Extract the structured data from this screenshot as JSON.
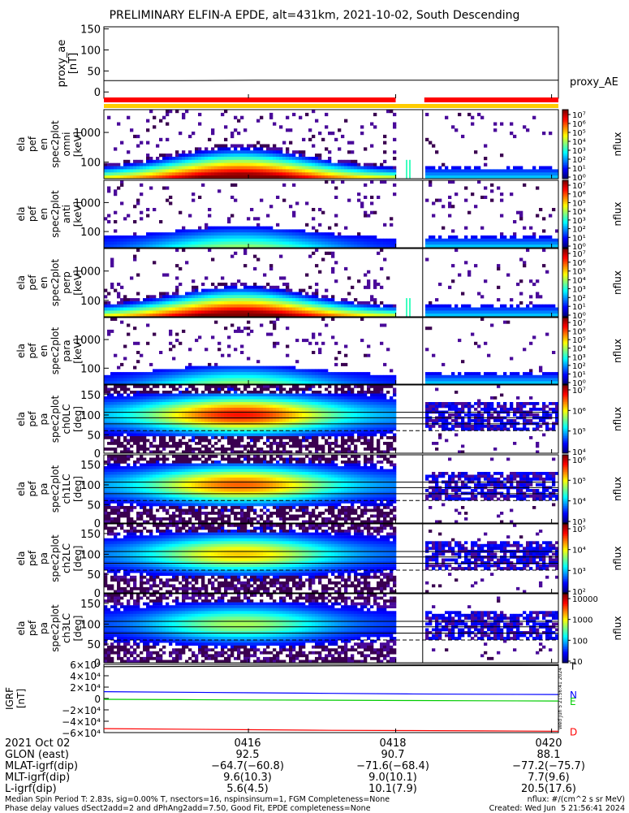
{
  "title": "PRELIMINARY ELFIN-A EPDE, alt=431km, 2021-10-02, South Descending",
  "colors": {
    "red": "#ff0000",
    "yellow": "#ffcc00",
    "blue": "#0000ff",
    "green": "#00cc00",
    "black": "#000000"
  },
  "chart_data": [
    {
      "id": "proxy_ae",
      "type": "line",
      "ylabel": [
        "proxy_ae",
        "[nT]"
      ],
      "yticks": [
        "150",
        "100",
        "50",
        "0"
      ],
      "ylim": [
        -15,
        155
      ],
      "series": [
        {
          "name": "proxy_AE",
          "values": [
            27,
            27,
            28,
            28,
            28,
            28,
            28
          ]
        }
      ],
      "flag_bar": [
        "red",
        "red",
        "yellow",
        "red",
        "red"
      ]
    },
    {
      "id": "spec1",
      "type": "heatmap",
      "ylabel": [
        "ela",
        "pef",
        "en",
        "spec2plot",
        "omni",
        "[keV]"
      ],
      "yticks": [
        "1000",
        "100"
      ],
      "ytick_pos": [
        0.67,
        0.24
      ],
      "kind": "energy",
      "intensity": 1.0,
      "cbar_label": "nflux",
      "cbar_ticks": [
        "10⁷",
        "10⁶",
        "10⁵",
        "10⁴",
        "10³",
        "10²",
        "10¹",
        "10⁰"
      ]
    },
    {
      "id": "spec2",
      "type": "heatmap",
      "ylabel": [
        "ela",
        "pef",
        "en",
        "spec2plot",
        "anti",
        "[keV]"
      ],
      "yticks": [
        "1000",
        "100"
      ],
      "ytick_pos": [
        0.67,
        0.24
      ],
      "kind": "energy",
      "intensity": 0.5,
      "cbar_label": "nflux",
      "cbar_ticks": [
        "10⁷",
        "10⁶",
        "10⁵",
        "10⁴",
        "10³",
        "10²",
        "10¹",
        "10⁰"
      ]
    },
    {
      "id": "spec3",
      "type": "heatmap",
      "ylabel": [
        "ela",
        "pef",
        "en",
        "spec2plot",
        "perp",
        "[keV]"
      ],
      "yticks": [
        "1000",
        "100"
      ],
      "ytick_pos": [
        0.67,
        0.24
      ],
      "kind": "energy",
      "intensity": 1.0,
      "cbar_label": "nflux",
      "cbar_ticks": [
        "10⁷",
        "10⁶",
        "10⁵",
        "10⁴",
        "10³",
        "10²",
        "10¹",
        "10⁰"
      ]
    },
    {
      "id": "spec4",
      "type": "heatmap",
      "ylabel": [
        "ela",
        "pef",
        "en",
        "spec2plot",
        "para",
        "[keV]"
      ],
      "yticks": [
        "1000",
        "100"
      ],
      "ytick_pos": [
        0.67,
        0.24
      ],
      "kind": "energy",
      "intensity": 0.45,
      "cbar_label": "nflux",
      "cbar_ticks": [
        "10⁷",
        "10⁶",
        "10⁵",
        "10⁴",
        "10³",
        "10²",
        "10¹",
        "10⁰"
      ]
    },
    {
      "id": "pa0",
      "type": "heatmap",
      "ylabel": [
        "ela",
        "pef",
        "pa",
        "spec2plot",
        "ch0LC",
        "[deg]"
      ],
      "yticks": [
        "150",
        "100",
        "50",
        "0"
      ],
      "ytick_pos": [
        0.86,
        0.56,
        0.27,
        0.0
      ],
      "kind": "pa",
      "intensity": 0.95,
      "cbar_label": "nflux",
      "cbar_ticks": [
        "10⁷",
        "10⁶",
        "10⁵",
        "10⁴"
      ]
    },
    {
      "id": "pa1",
      "type": "heatmap",
      "ylabel": [
        "ela",
        "pef",
        "pa",
        "spec2plot",
        "ch1LC",
        "[deg]"
      ],
      "yticks": [
        "150",
        "100",
        "50",
        "0"
      ],
      "ytick_pos": [
        0.86,
        0.56,
        0.27,
        0.0
      ],
      "kind": "pa",
      "intensity": 0.8,
      "cbar_label": "nflux",
      "cbar_ticks": [
        "10⁶",
        "10⁵",
        "10⁴",
        "10³"
      ]
    },
    {
      "id": "pa2",
      "type": "heatmap",
      "ylabel": [
        "ela",
        "pef",
        "pa",
        "spec2plot",
        "ch2LC",
        "[deg]"
      ],
      "yticks": [
        "150",
        "100",
        "50",
        "0"
      ],
      "ytick_pos": [
        0.86,
        0.56,
        0.27,
        0.0
      ],
      "kind": "pa",
      "intensity": 0.6,
      "cbar_label": "nflux",
      "cbar_ticks": [
        "10⁵",
        "10⁴",
        "10³",
        "10²"
      ]
    },
    {
      "id": "pa3",
      "type": "heatmap",
      "ylabel": [
        "ela",
        "pef",
        "pa",
        "spec2plot",
        "ch3LC",
        "[deg]"
      ],
      "yticks": [
        "150",
        "100",
        "50",
        "0"
      ],
      "ytick_pos": [
        0.86,
        0.56,
        0.27,
        0.0
      ],
      "kind": "pa",
      "intensity": 0.35,
      "cbar_label": "nflux",
      "cbar_ticks": [
        "10000",
        "1000",
        "100",
        "10"
      ]
    },
    {
      "id": "igrf",
      "type": "line",
      "ylabel": [
        "IGRF",
        "[nT]"
      ],
      "yticks": [
        "6×10⁴",
        "4×10⁴",
        "2×10⁴",
        "0",
        "−2×10⁴",
        "−4×10⁴",
        "−6×10⁴"
      ],
      "ylim": [
        -60000,
        60000
      ],
      "series": [
        {
          "name": "T",
          "color": "black",
          "values": [
            56000,
            56500,
            57000,
            57500,
            57800,
            58000,
            58200
          ]
        },
        {
          "name": "N",
          "color": "blue",
          "values": [
            12000,
            11000,
            10000,
            9000,
            8000,
            7500,
            7000
          ]
        },
        {
          "name": "E",
          "color": "green",
          "values": [
            -1500,
            -2000,
            -2500,
            -3000,
            -3500,
            -4000,
            -4500
          ]
        },
        {
          "name": "D",
          "color": "red",
          "values": [
            -53000,
            -54000,
            -55000,
            -56000,
            -56500,
            -57000,
            -57500
          ]
        }
      ]
    }
  ],
  "xaxis": {
    "row_labels": [
      "2021 Oct 02",
      "GLON (east)",
      "MLAT-igrf(dip)",
      "MLT-igrf(dip)",
      "L-igrf(dip)"
    ],
    "ticks": [
      {
        "label": "0416",
        "glon": "92.5",
        "mlat": "−64.7(−60.8)",
        "mlt": "9.6(10.3)",
        "l": "5.6(4.5)"
      },
      {
        "label": "0418",
        "glon": "90.7",
        "mlat": "−71.6(−68.4)",
        "mlt": "9.0(10.1)",
        "l": "10.1(7.9)"
      },
      {
        "label": "0420",
        "glon": "88.1",
        "mlat": "−77.2(−75.7)",
        "mlt": "7.7(9.6)",
        "l": "20.5(17.6)"
      }
    ]
  },
  "footer": {
    "line1": "Median Spin Period T: 2.83s, sig=0.00% T, nsectors=16, nspinsinsum=1, FGM Completeness=None",
    "line2": "Phase delay values dSect2add=2 and dPhAng2add=7.50, Good Fit, EPDE completeness=None",
    "right1": "nflux: #/(cm^2 s sr MeV)",
    "right2": "Created: Wed Jun  5 21:56:41 2024",
    "stamp": "Wed Jun  5 21:56:41 2024"
  }
}
